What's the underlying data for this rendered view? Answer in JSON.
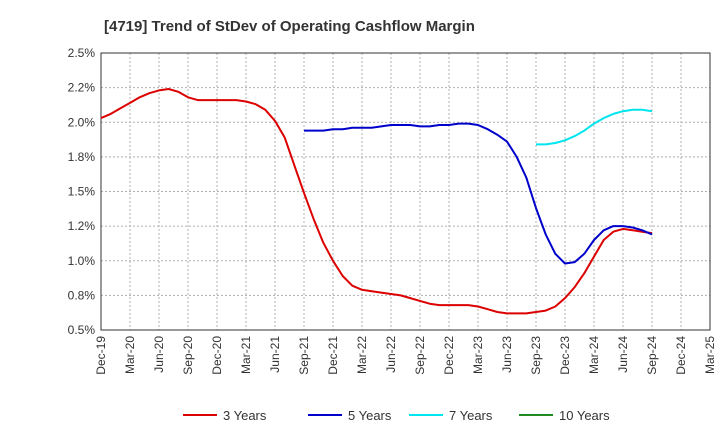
{
  "chart_data": {
    "type": "line",
    "title": "[4719]  Trend of StDev of Operating Cashflow Margin",
    "xlabel": "",
    "ylabel": "",
    "x_ticks": [
      "Dec-19",
      "Mar-20",
      "Jun-20",
      "Sep-20",
      "Dec-20",
      "Mar-21",
      "Jun-21",
      "Sep-21",
      "Dec-21",
      "Mar-22",
      "Jun-22",
      "Sep-22",
      "Dec-22",
      "Mar-23",
      "Jun-23",
      "Sep-23",
      "Dec-23",
      "Mar-24",
      "Jun-24",
      "Sep-24",
      "Dec-24",
      "Mar-25"
    ],
    "y_ticks": [
      "0.5%",
      "0.8%",
      "1.0%",
      "1.2%",
      "1.5%",
      "1.8%",
      "2.0%",
      "2.2%",
      "2.5%"
    ],
    "ylim": [
      0.5,
      2.5
    ],
    "grid": true,
    "legend_position": "bottom",
    "series": [
      {
        "name": "3 Years",
        "color": "#dd0000",
        "x": [
          "Dec-19",
          "Jan-20",
          "Feb-20",
          "Mar-20",
          "Apr-20",
          "May-20",
          "Jun-20",
          "Jul-20",
          "Aug-20",
          "Sep-20",
          "Oct-20",
          "Nov-20",
          "Dec-20",
          "Jan-21",
          "Feb-21",
          "Mar-21",
          "Apr-21",
          "May-21",
          "Jun-21",
          "Jul-21",
          "Aug-21",
          "Sep-21",
          "Oct-21",
          "Nov-21",
          "Dec-21",
          "Jan-22",
          "Feb-22",
          "Mar-22",
          "Apr-22",
          "May-22",
          "Jun-22",
          "Jul-22",
          "Aug-22",
          "Sep-22",
          "Oct-22",
          "Nov-22",
          "Dec-22",
          "Jan-23",
          "Feb-23",
          "Mar-23",
          "Apr-23",
          "May-23",
          "Jun-23",
          "Jul-23",
          "Aug-23",
          "Sep-23",
          "Oct-23",
          "Nov-23",
          "Dec-23",
          "Jan-24",
          "Feb-24",
          "Mar-24",
          "Apr-24",
          "May-24",
          "Jun-24",
          "Jul-24",
          "Aug-24",
          "Sep-24"
        ],
        "values": [
          2.03,
          2.06,
          2.1,
          2.14,
          2.18,
          2.21,
          2.23,
          2.24,
          2.22,
          2.18,
          2.16,
          2.16,
          2.16,
          2.16,
          2.16,
          2.15,
          2.13,
          2.09,
          2.01,
          1.89,
          1.69,
          1.49,
          1.3,
          1.13,
          1.0,
          0.89,
          0.82,
          0.79,
          0.78,
          0.77,
          0.76,
          0.75,
          0.73,
          0.71,
          0.69,
          0.68,
          0.68,
          0.68,
          0.68,
          0.67,
          0.65,
          0.63,
          0.62,
          0.62,
          0.62,
          0.63,
          0.64,
          0.67,
          0.73,
          0.81,
          0.91,
          1.03,
          1.15,
          1.21,
          1.23,
          1.22,
          1.21,
          1.2
        ]
      },
      {
        "name": "5 Years",
        "color": "#0000cc",
        "x": [
          "Sep-21",
          "Oct-21",
          "Nov-21",
          "Dec-21",
          "Jan-22",
          "Feb-22",
          "Mar-22",
          "Apr-22",
          "May-22",
          "Jun-22",
          "Jul-22",
          "Aug-22",
          "Sep-22",
          "Oct-22",
          "Nov-22",
          "Dec-22",
          "Jan-23",
          "Feb-23",
          "Mar-23",
          "Apr-23",
          "May-23",
          "Jun-23",
          "Jul-23",
          "Aug-23",
          "Sep-23",
          "Oct-23",
          "Nov-23",
          "Dec-23",
          "Jan-24",
          "Feb-24",
          "Mar-24",
          "Apr-24",
          "May-24",
          "Jun-24",
          "Jul-24",
          "Aug-24",
          "Sep-24"
        ],
        "values": [
          1.94,
          1.94,
          1.94,
          1.95,
          1.95,
          1.96,
          1.96,
          1.96,
          1.97,
          1.98,
          1.98,
          1.98,
          1.97,
          1.97,
          1.98,
          1.98,
          1.99,
          1.99,
          1.98,
          1.95,
          1.91,
          1.86,
          1.75,
          1.6,
          1.38,
          1.19,
          1.05,
          0.98,
          0.99,
          1.05,
          1.15,
          1.22,
          1.25,
          1.25,
          1.24,
          1.22,
          1.19
        ]
      },
      {
        "name": "7 Years",
        "color": "#00e5ee",
        "x": [
          "Sep-23",
          "Oct-23",
          "Nov-23",
          "Dec-23",
          "Jan-24",
          "Feb-24",
          "Mar-24",
          "Apr-24",
          "May-24",
          "Jun-24",
          "Jul-24",
          "Aug-24",
          "Sep-24"
        ],
        "values": [
          1.84,
          1.84,
          1.85,
          1.87,
          1.9,
          1.94,
          1.99,
          2.03,
          2.06,
          2.08,
          2.09,
          2.09,
          2.08
        ]
      },
      {
        "name": "10 Years",
        "color": "#228b22",
        "x": [],
        "values": []
      }
    ]
  }
}
